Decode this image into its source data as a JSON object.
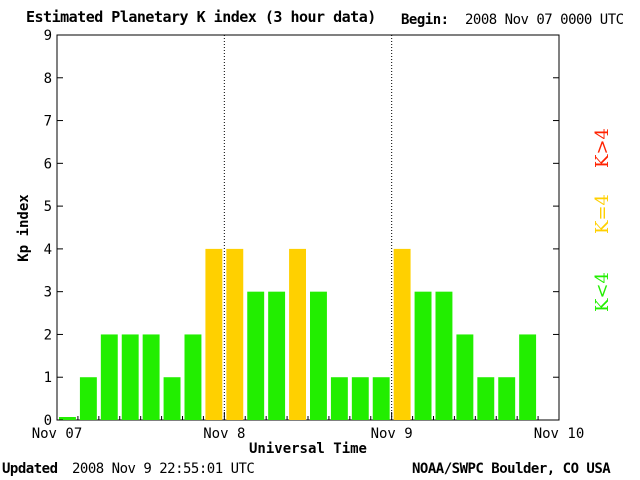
{
  "header": {
    "title": "Estimated Planetary K index (3 hour data)",
    "begin_label": "Begin:",
    "begin_value": "2008 Nov 07 0000 UTC"
  },
  "footer": {
    "updated_label": "Updated",
    "updated_value": "2008 Nov  9 22:55:01 UTC",
    "credit": "NOAA/SWPC Boulder, CO USA"
  },
  "chart_data": {
    "type": "bar",
    "title": "Estimated Planetary K index (3 hour data)",
    "xlabel": "Universal Time",
    "ylabel": "Kp index",
    "ylim": [
      0,
      9
    ],
    "yticks": [
      "0",
      "1",
      "2",
      "3",
      "4",
      "5",
      "6",
      "7",
      "8",
      "9"
    ],
    "xtick_labels": [
      "Nov 07",
      "Nov 8",
      "Nov 9",
      "Nov 10"
    ],
    "values": [
      0.07,
      1,
      2,
      2,
      2,
      1,
      2,
      4,
      4,
      3,
      3,
      4,
      3,
      1,
      1,
      1,
      4,
      3,
      3,
      2,
      1,
      1,
      2
    ],
    "legend": [
      {
        "label": "K<4",
        "color": "#00e600"
      },
      {
        "label": "K=4",
        "color": "#ffcc00"
      },
      {
        "label": "K>4",
        "color": "#ff2200"
      }
    ],
    "colors": {
      "low": "#22ee00",
      "equal": "#ffd000",
      "high": "#ff2200"
    },
    "grid": false,
    "legend_position": "right"
  }
}
